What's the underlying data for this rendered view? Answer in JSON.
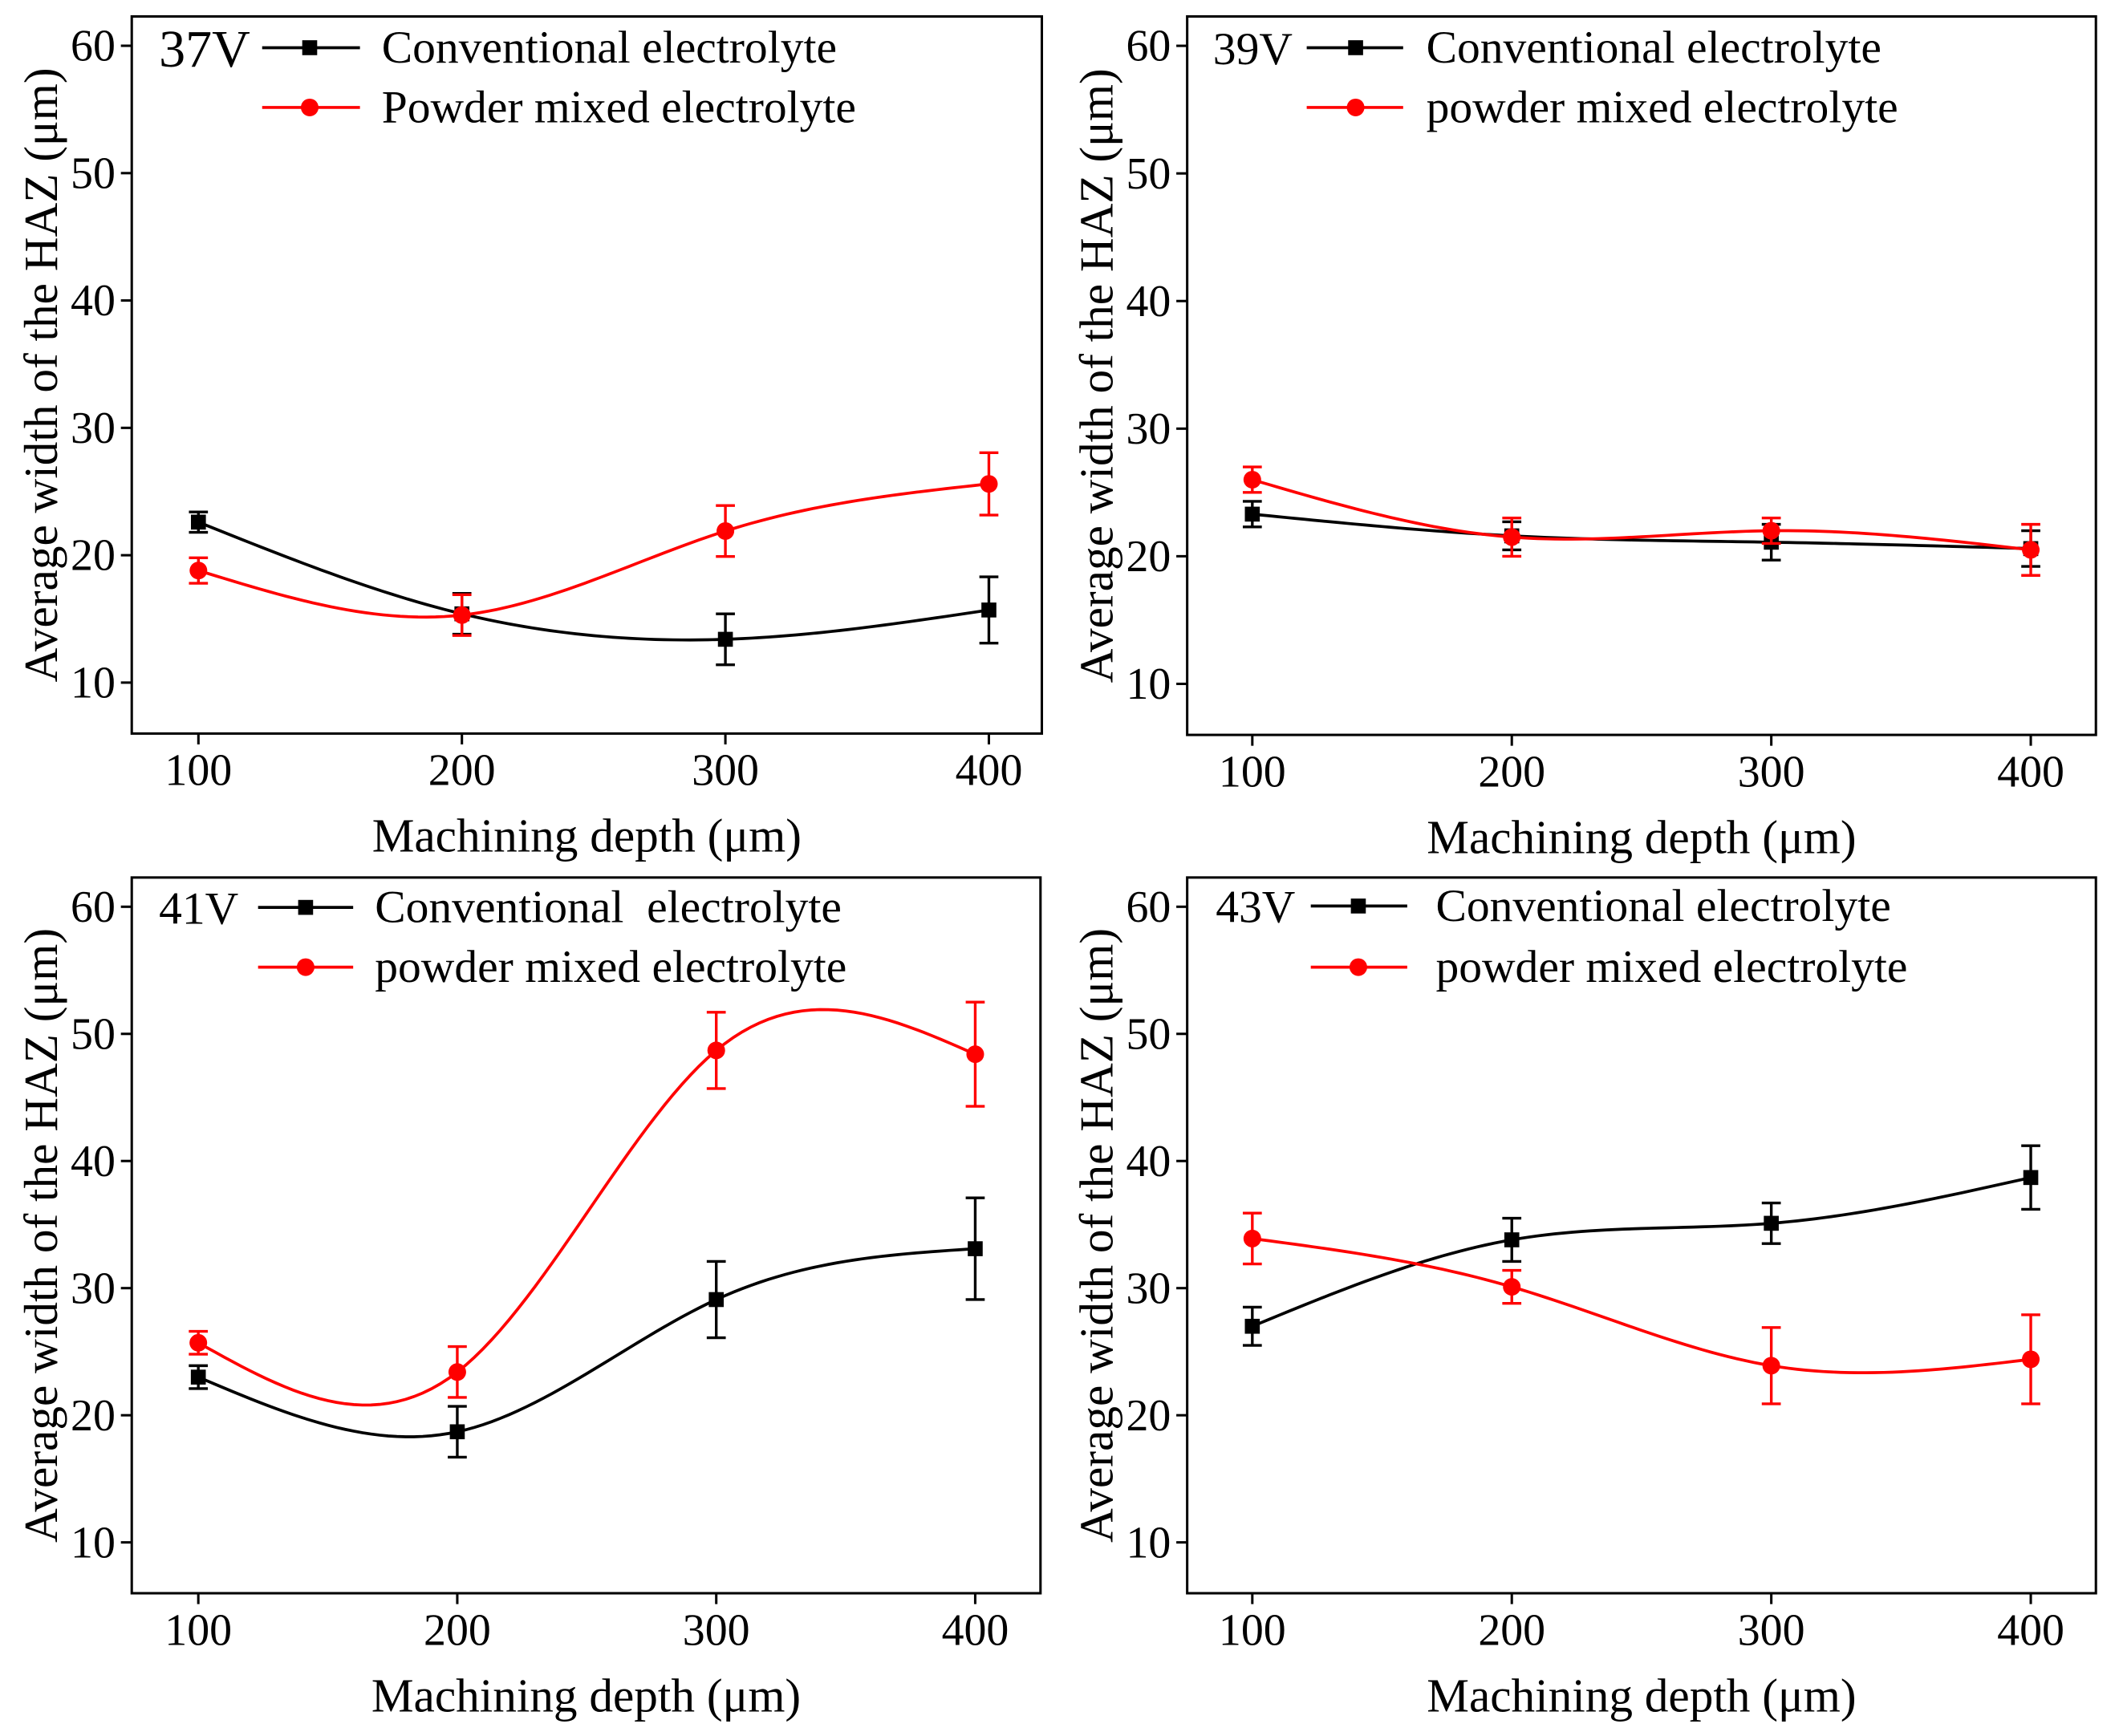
{
  "chart_data": [
    {
      "type": "line",
      "title": "37V",
      "xlabel": "Machining depth (μm)",
      "ylabel": "Average width of the HAZ (μm)",
      "x": [
        100,
        200,
        300,
        400
      ],
      "xticks": [
        100,
        200,
        300,
        400
      ],
      "yticks": [
        10,
        20,
        30,
        40,
        50,
        60
      ],
      "xlim": [
        74.7,
        420.1
      ],
      "ylim": [
        6,
        62.3
      ],
      "grid": false,
      "legend": "top-left",
      "series": [
        {
          "name": "Conventional electrolyte",
          "color": "#000000",
          "marker": "square",
          "values": [
            22.6,
            15.4,
            13.4,
            15.7
          ],
          "errors": [
            0.8,
            1.6,
            2.0,
            2.6
          ]
        },
        {
          "name": "Powder mixed electrolyte",
          "color": "#ff0000",
          "marker": "circle",
          "values": [
            18.8,
            15.3,
            21.9,
            25.6
          ],
          "errors": [
            1.0,
            1.6,
            2.0,
            2.45
          ]
        }
      ]
    },
    {
      "type": "line",
      "title": "39V",
      "xlabel": "Machining depth (μm)",
      "ylabel": "Average width of the HAZ (μm)",
      "x": [
        100,
        200,
        300,
        400
      ],
      "xticks": [
        100,
        200,
        300,
        400
      ],
      "yticks": [
        10,
        20,
        30,
        40,
        50,
        60
      ],
      "xlim": [
        74.9,
        425.1
      ],
      "ylim": [
        6,
        62.3
      ],
      "grid": false,
      "legend": "top-left",
      "series": [
        {
          "name": "Conventional electrolyte",
          "color": "#000000",
          "marker": "square",
          "values": [
            23.3,
            21.6,
            21.1,
            20.6
          ],
          "errors": [
            1.0,
            1.1,
            1.4,
            1.4
          ]
        },
        {
          "name": "powder mixed electrolyte",
          "color": "#ff0000",
          "marker": "circle",
          "values": [
            26.0,
            21.5,
            22.0,
            20.5
          ],
          "errors": [
            1.0,
            1.5,
            1.0,
            2.0
          ]
        }
      ]
    },
    {
      "type": "line",
      "title": "41V",
      "xlabel": "Machining depth (μm)",
      "ylabel": "Average width of the HAZ (μm)",
      "x": [
        100,
        200,
        300,
        400
      ],
      "xticks": [
        100,
        200,
        300,
        400
      ],
      "yticks": [
        10,
        20,
        30,
        40,
        50,
        60
      ],
      "xlim": [
        74.3,
        425.2
      ],
      "ylim": [
        6,
        62.3
      ],
      "grid": false,
      "legend": "top-left",
      "series": [
        {
          "name": "Conventional  electrolyte",
          "color": "#000000",
          "marker": "square",
          "values": [
            23.0,
            18.7,
            29.1,
            33.1
          ],
          "errors": [
            0.9,
            2.0,
            3.0,
            4.0
          ]
        },
        {
          "name": "powder mixed electrolyte",
          "color": "#ff0000",
          "marker": "circle",
          "values": [
            25.7,
            23.4,
            48.7,
            48.4
          ],
          "errors": [
            0.9,
            2.0,
            3.0,
            4.1
          ]
        }
      ]
    },
    {
      "type": "line",
      "title": "43V",
      "xlabel": "Machining depth (μm)",
      "ylabel": "Average width of the HAZ (μm)",
      "x": [
        100,
        200,
        300,
        400
      ],
      "xticks": [
        100,
        200,
        300,
        400
      ],
      "yticks": [
        10,
        20,
        30,
        40,
        50,
        60
      ],
      "xlim": [
        74.9,
        425.1
      ],
      "ylim": [
        6,
        62.3
      ],
      "grid": false,
      "legend": "top-left",
      "series": [
        {
          "name": "Conventional electrolyte",
          "color": "#000000",
          "marker": "square",
          "values": [
            27.0,
            33.8,
            35.1,
            38.7
          ],
          "errors": [
            1.5,
            1.7,
            1.6,
            2.5
          ]
        },
        {
          "name": "powder mixed electrolyte",
          "color": "#ff0000",
          "marker": "circle",
          "values": [
            33.9,
            30.1,
            23.9,
            24.4
          ],
          "errors": [
            2.0,
            1.3,
            3.0,
            3.5
          ]
        }
      ]
    }
  ]
}
